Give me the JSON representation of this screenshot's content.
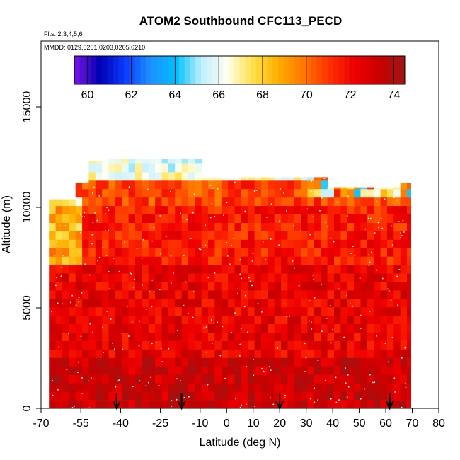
{
  "chart_data": {
    "type": "heatmap",
    "title": "ATOM2 Southbound CFC113_PECD",
    "flights_note": "Flts: 2,3,4,5,6",
    "dates_note": "MMDD: 0129,0201,0203,0205,0210",
    "xlabel": "Latitude (deg N)",
    "ylabel": "Altitude (m)",
    "xlim": [
      -70,
      80
    ],
    "ylim": [
      0,
      17500
    ],
    "x_ticks": [
      -70,
      -55,
      -40,
      -25,
      -10,
      0,
      10,
      20,
      30,
      40,
      50,
      60,
      70,
      80
    ],
    "x_tick_labels": [
      "-70",
      "-55",
      "-40",
      "-25",
      "-10",
      "0",
      "10",
      "20",
      "30",
      "40",
      "50",
      "60",
      "70",
      "80"
    ],
    "y_ticks": [
      0,
      5000,
      10000,
      15000
    ],
    "y_tick_labels": [
      "0",
      "5000",
      "10000",
      "15000"
    ],
    "colorbar": {
      "min": 59.4,
      "max": 74.5,
      "ticks": [
        60,
        62,
        64,
        66,
        68,
        70,
        72,
        74
      ],
      "tick_labels": [
        "60",
        "62",
        "64",
        "66",
        "68",
        "70",
        "72",
        "74"
      ],
      "colors": [
        "#7b14e6",
        "#0000b4",
        "#0a3cff",
        "#1e90ff",
        "#00bfff",
        "#bfefff",
        "#fffff0",
        "#ffe14a",
        "#ffb000",
        "#ff7800",
        "#ff3200",
        "#f00000",
        "#c80000",
        "#a01414"
      ]
    },
    "profile_markers_lat": [
      -41.5,
      -17,
      20,
      61.5
    ],
    "value_bands_by_altitude": [
      {
        "alt_range": [
          0,
          2500
        ],
        "typical_value": 73.2
      },
      {
        "alt_range": [
          2500,
          7000
        ],
        "typical_value": 72.4
      },
      {
        "alt_range": [
          7000,
          10000
        ],
        "typical_value": 71.6
      },
      {
        "alt_range": [
          10000,
          11000
        ],
        "typical_value": 70.8
      },
      {
        "alt_range": [
          11000,
          11500
        ],
        "typical_value": 66.5
      }
    ]
  }
}
